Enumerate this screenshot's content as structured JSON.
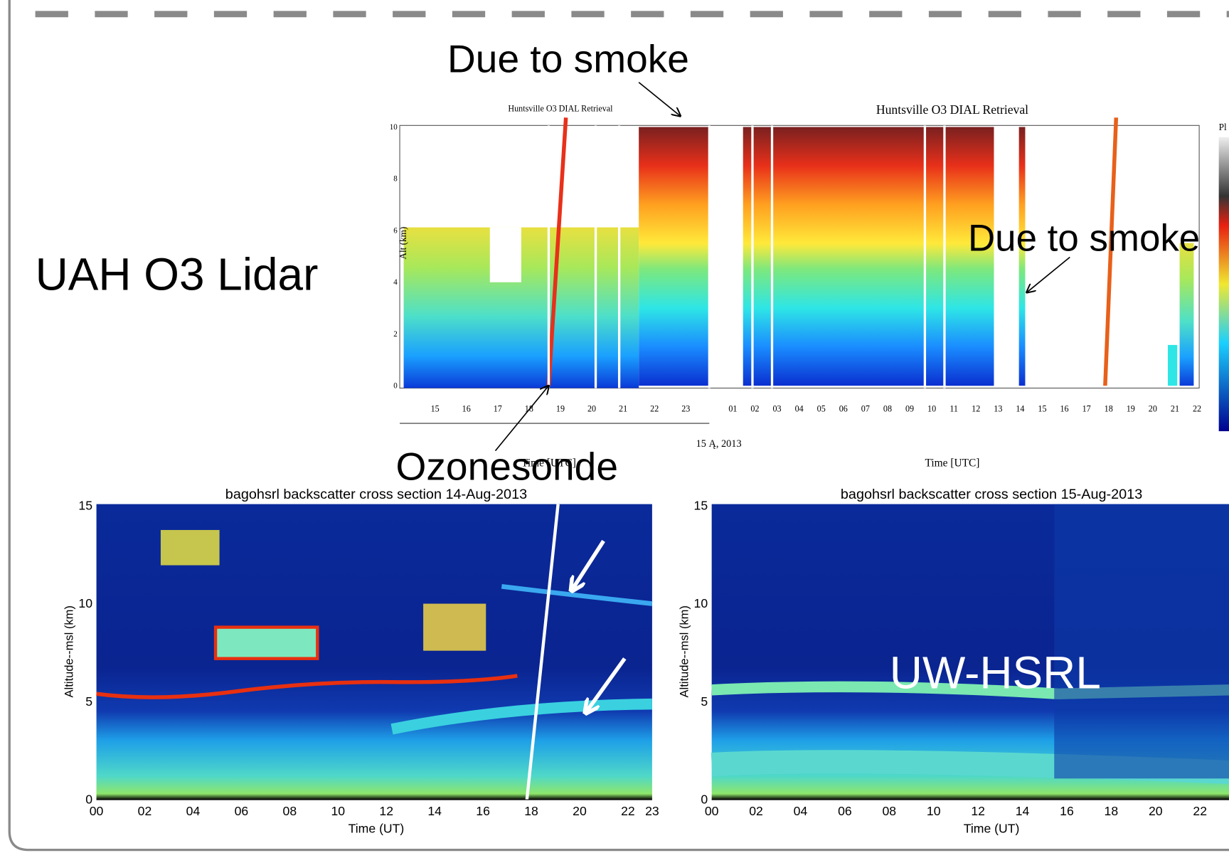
{
  "slide": {
    "callouts": {
      "smoke_top": "Due to smoke",
      "smoke_right": "Due to smoke",
      "lidar_label": "UAH O3 Lidar",
      "ozonesonde": "Ozonesonde",
      "hsrl_label": "UW-HSRL"
    },
    "lidar_plot": {
      "title_left": "Huntsville O3 DIAL Retrieval",
      "title_right": "Huntsville O3 DIAL Retrieval",
      "y_label": "Alt (km)",
      "yticks": [
        "0",
        "2",
        "4",
        "6",
        "8",
        "10"
      ],
      "xticks_left": [
        "15",
        "16",
        "17",
        "18",
        "19",
        "20",
        "21",
        "22",
        "23"
      ],
      "xticks_right": [
        "01",
        "02",
        "03",
        "04",
        "05",
        "06",
        "07",
        "08",
        "09",
        "10",
        "11",
        "12",
        "13",
        "14",
        "15",
        "16",
        "17",
        "18",
        "19",
        "20",
        "21",
        "22"
      ],
      "date": "15 Ą, 2013",
      "x_label_left": "Time [UTC]",
      "x_label_right": "Time [UTC]",
      "legend_head": "Pl"
    },
    "hsrl_plots": [
      {
        "title": "bagohsrl  backscatter cross section    14-Aug-2013",
        "y_label": "Altitude--msl (km)",
        "x_label": "Time (UT)",
        "yticks": [
          "0",
          "5",
          "10",
          "15"
        ],
        "xticks": [
          "00",
          "02",
          "04",
          "06",
          "08",
          "10",
          "12",
          "14",
          "16",
          "18",
          "20",
          "22",
          "23"
        ]
      },
      {
        "title": "bagohsrl  backscatter cross section    15-Aug-2013",
        "y_label": "Altitude--msl (km)",
        "x_label": "Time (UT)",
        "yticks": [
          "0",
          "5",
          "10",
          "15"
        ],
        "xticks": [
          "00",
          "02",
          "04",
          "06",
          "08",
          "10",
          "12",
          "14",
          "16",
          "18",
          "20",
          "22"
        ]
      }
    ]
  }
}
